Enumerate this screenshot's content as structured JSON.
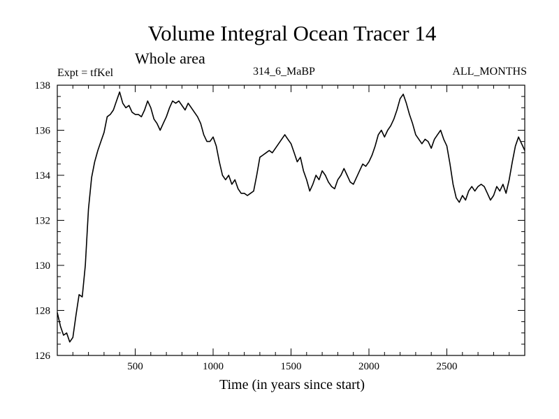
{
  "chart_data": {
    "type": "line",
    "title": "Volume Integral Ocean Tracer 14",
    "subtitle": "Whole area",
    "label_left": "Expt = tfKel",
    "label_center": "314_6_MaBP",
    "label_right": "ALL_MONTHS",
    "xlabel": "Time (in years since start)",
    "ylabel": "",
    "xlim": [
      0,
      3000
    ],
    "ylim": [
      126,
      138
    ],
    "x_ticks": [
      500,
      1000,
      1500,
      2000,
      2500
    ],
    "y_ticks": [
      126,
      128,
      130,
      132,
      134,
      136,
      138
    ],
    "grid": false,
    "line_color": "#000000",
    "series": [
      {
        "x": [
          0,
          20,
          40,
          60,
          80,
          100,
          120,
          140,
          160,
          180,
          200,
          220,
          240,
          260,
          280,
          300,
          320,
          340,
          360,
          380,
          400,
          420,
          440,
          460,
          480,
          500,
          520,
          540,
          560,
          580,
          600,
          620,
          640,
          660,
          680,
          700,
          720,
          740,
          760,
          780,
          800,
          820,
          840,
          860,
          880,
          900,
          920,
          940,
          960,
          980,
          1000,
          1020,
          1040,
          1060,
          1080,
          1100,
          1120,
          1140,
          1160,
          1180,
          1200,
          1220,
          1240,
          1260,
          1280,
          1300,
          1320,
          1340,
          1360,
          1380,
          1400,
          1420,
          1440,
          1460,
          1480,
          1500,
          1520,
          1540,
          1560,
          1580,
          1600,
          1620,
          1640,
          1660,
          1680,
          1700,
          1720,
          1740,
          1760,
          1780,
          1800,
          1820,
          1840,
          1860,
          1880,
          1900,
          1920,
          1940,
          1960,
          1980,
          2000,
          2020,
          2040,
          2060,
          2080,
          2100,
          2120,
          2140,
          2160,
          2180,
          2200,
          2220,
          2240,
          2260,
          2280,
          2300,
          2320,
          2340,
          2360,
          2380,
          2400,
          2420,
          2440,
          2460,
          2480,
          2500,
          2520,
          2540,
          2560,
          2580,
          2600,
          2620,
          2640,
          2660,
          2680,
          2700,
          2720,
          2740,
          2760,
          2780,
          2800,
          2820,
          2840,
          2860,
          2880,
          2900,
          2920,
          2940,
          2960,
          2980,
          3000
        ],
        "y": [
          127.9,
          127.3,
          126.9,
          127.0,
          126.6,
          126.8,
          127.8,
          128.7,
          128.6,
          130.0,
          132.5,
          133.9,
          134.6,
          135.1,
          135.5,
          135.9,
          136.6,
          136.7,
          136.9,
          137.3,
          137.7,
          137.2,
          137.0,
          137.1,
          136.8,
          136.7,
          136.7,
          136.6,
          136.9,
          137.3,
          137.0,
          136.5,
          136.3,
          136.0,
          136.3,
          136.6,
          137.0,
          137.3,
          137.2,
          137.3,
          137.1,
          136.9,
          137.2,
          137.0,
          136.8,
          136.6,
          136.3,
          135.8,
          135.5,
          135.5,
          135.7,
          135.3,
          134.6,
          134.0,
          133.8,
          134.0,
          133.6,
          133.8,
          133.4,
          133.2,
          133.2,
          133.1,
          133.2,
          133.3,
          134.0,
          134.8,
          134.9,
          135.0,
          135.1,
          135.0,
          135.2,
          135.4,
          135.6,
          135.8,
          135.6,
          135.4,
          135.0,
          134.6,
          134.8,
          134.2,
          133.8,
          133.3,
          133.6,
          134.0,
          133.8,
          134.2,
          134.0,
          133.7,
          133.5,
          133.4,
          133.8,
          134.0,
          134.3,
          134.0,
          133.7,
          133.6,
          133.9,
          134.2,
          134.5,
          134.4,
          134.6,
          134.9,
          135.3,
          135.8,
          136.0,
          135.7,
          136.0,
          136.2,
          136.5,
          136.9,
          137.4,
          137.6,
          137.2,
          136.7,
          136.3,
          135.8,
          135.6,
          135.4,
          135.6,
          135.5,
          135.2,
          135.6,
          135.8,
          136.0,
          135.6,
          135.3,
          134.5,
          133.6,
          133.0,
          132.8,
          133.1,
          132.9,
          133.3,
          133.5,
          133.3,
          133.5,
          133.6,
          133.5,
          133.2,
          132.9,
          133.1,
          133.5,
          133.3,
          133.6,
          133.2,
          133.8,
          134.6,
          135.3,
          135.7,
          135.4,
          135.1
        ]
      }
    ]
  }
}
